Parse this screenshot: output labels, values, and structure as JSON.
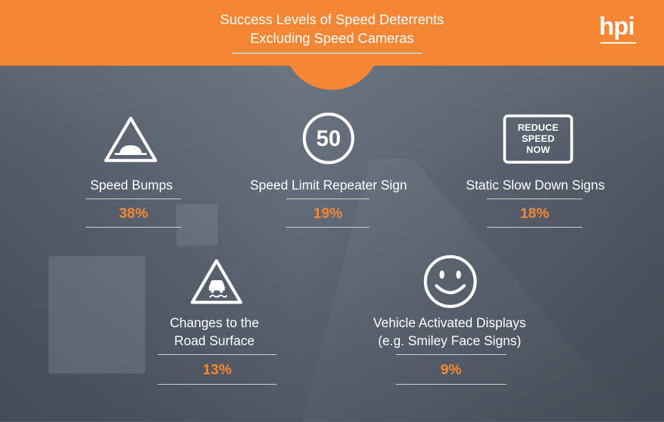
{
  "header": {
    "title_line1": "Success Levels of Speed Deterrents",
    "title_line2": "Excluding Speed Cameras",
    "logo_text": "hpi"
  },
  "colors": {
    "accent": "#f58634",
    "text": "#ffffff",
    "rule": "#d8d8d8"
  },
  "icons": {
    "speed_limit_number": "50",
    "reduce_sign_line1": "REDUCE",
    "reduce_sign_line2": "SPEED",
    "reduce_sign_line3": "NOW"
  },
  "chart_data": {
    "type": "table",
    "title": "Success Levels of Speed Deterrents Excluding Speed Cameras",
    "items": [
      {
        "label": "Speed Bumps",
        "value": "38%",
        "icon": "speed-bump-warning-icon"
      },
      {
        "label": "Speed Limit Repeater Sign",
        "value": "19%",
        "icon": "speed-limit-50-icon"
      },
      {
        "label": "Static Slow Down Signs",
        "value": "18%",
        "icon": "reduce-speed-now-sign-icon"
      },
      {
        "label_line1": "Changes to the",
        "label_line2": "Road Surface",
        "value": "13%",
        "icon": "slippery-road-warning-icon"
      },
      {
        "label_line1": "Vehicle Activated Displays",
        "label_line2": "(e.g. Smiley Face Signs)",
        "value": "9%",
        "icon": "smiley-face-icon"
      }
    ]
  }
}
